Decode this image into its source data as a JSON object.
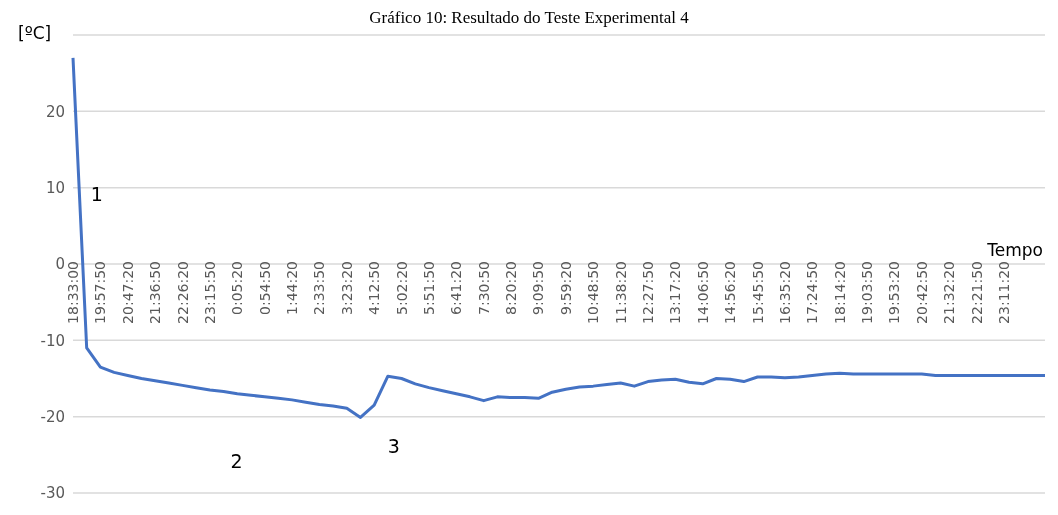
{
  "chart_data": {
    "type": "line",
    "title": "Gráfico 10: Resultado do Teste Experimental 4",
    "xlabel": "Tempo",
    "ylabel": "[ºC]",
    "categories": [
      "18:33:00",
      null,
      "19:57:50",
      null,
      "20:47:20",
      null,
      "21:36:50",
      null,
      "22:26:20",
      null,
      "23:15:50",
      null,
      "0:05:20",
      null,
      "0:54:50",
      null,
      "1:44:20",
      null,
      "2:33:50",
      null,
      "3:23:20",
      null,
      "4:12:50",
      null,
      "5:02:20",
      null,
      "5:51:50",
      null,
      "6:41:20",
      null,
      "7:30:50",
      null,
      "8:20:20",
      null,
      "9:09:50",
      null,
      "9:59:20",
      null,
      "10:48:50",
      null,
      "11:38:20",
      null,
      "12:27:50",
      null,
      "13:17:20",
      null,
      "14:06:50",
      null,
      "14:56:20",
      null,
      "15:45:50",
      null,
      "16:35:20",
      null,
      "17:24:50",
      null,
      "18:14:20",
      null,
      "19:03:50",
      null,
      "19:53:20",
      null,
      "20:42:50",
      null,
      "21:32:20",
      null,
      "22:21:50",
      null,
      "23:11:20",
      null,
      null,
      null
    ],
    "series": [
      {
        "color": "#4472c4",
        "values": [
          27,
          -11,
          -13.5,
          -14.2,
          -14.6,
          -15.0,
          -15.3,
          -15.6,
          -15.9,
          -16.2,
          -16.5,
          -16.7,
          -17.0,
          -17.2,
          -17.4,
          -17.6,
          -17.8,
          -18.1,
          -18.4,
          -18.6,
          -18.9,
          -20.1,
          -18.5,
          -14.7,
          -15.0,
          -15.7,
          -16.2,
          -16.6,
          -17.0,
          -17.4,
          -17.9,
          -17.4,
          -17.5,
          -17.5,
          -17.6,
          -16.8,
          -16.4,
          -16.1,
          -16.0,
          -15.8,
          -15.6,
          -16.0,
          -15.4,
          -15.2,
          -15.1,
          -15.5,
          -15.7,
          -15.0,
          -15.1,
          -15.4,
          -14.8,
          -14.8,
          -14.9,
          -14.8,
          -14.6,
          -14.4,
          -14.3,
          -14.4,
          -14.4,
          -14.4,
          -14.4,
          -14.4,
          -14.4,
          -14.6,
          -14.6,
          -14.6,
          -14.6,
          -14.6,
          -14.6,
          -14.6,
          -14.6,
          -14.6
        ]
      }
    ],
    "ylim": [
      -30,
      30
    ],
    "yticks": [
      -30,
      -20,
      -10,
      0,
      10,
      20,
      {
        "value": 30,
        "label": null
      }
    ],
    "grid": "y",
    "marker": "none",
    "line_style": "solid",
    "annotations": [
      "1",
      "2",
      "3"
    ]
  }
}
